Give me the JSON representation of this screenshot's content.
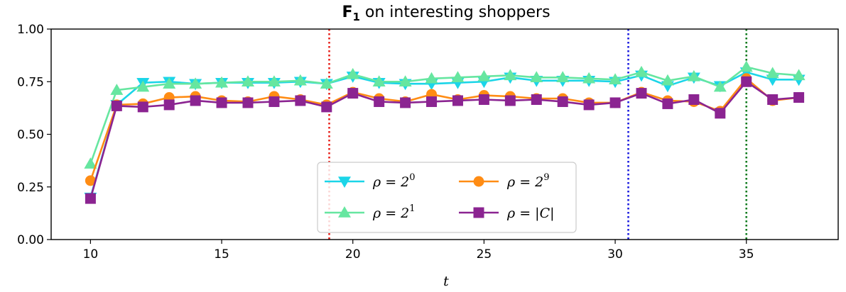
{
  "chart_data": {
    "type": "line",
    "title_bold": "F",
    "title_sub": "1",
    "title_rest": " on interesting shoppers",
    "xlabel": "t",
    "ylabel": "",
    "xlim": [
      8.5,
      38.5
    ],
    "ylim": [
      0.0,
      1.0
    ],
    "xticks": [
      10,
      15,
      20,
      25,
      30,
      35
    ],
    "yticks": [
      0.0,
      0.25,
      0.5,
      0.75,
      1.0
    ],
    "ytick_labels": [
      "0.00",
      "0.25",
      "0.50",
      "0.75",
      "1.00"
    ],
    "grid": false,
    "legend_position": "lower-center",
    "vlines": [
      {
        "x": 19.1,
        "color": "#e8221c"
      },
      {
        "x": 30.5,
        "color": "#1a1ae0"
      },
      {
        "x": 35.0,
        "color": "#0c7a1c"
      }
    ],
    "x": [
      10,
      11,
      12,
      13,
      14,
      15,
      16,
      17,
      18,
      19,
      20,
      21,
      22,
      23,
      24,
      25,
      26,
      27,
      28,
      29,
      30,
      31,
      32,
      33,
      34,
      35,
      36,
      37
    ],
    "series": [
      {
        "base": "ρ = 2",
        "sup": "0",
        "color": "#1bd5e8",
        "marker": "triangle-down",
        "values": [
          0.2,
          0.64,
          0.745,
          0.75,
          0.74,
          0.745,
          0.745,
          0.745,
          0.75,
          0.74,
          0.775,
          0.745,
          0.74,
          0.74,
          0.745,
          0.75,
          0.77,
          0.755,
          0.755,
          0.755,
          0.75,
          0.78,
          0.73,
          0.77,
          0.73,
          0.795,
          0.76,
          0.76
        ]
      },
      {
        "base": "ρ = 2",
        "sup": "1",
        "color": "#66e6a0",
        "marker": "triangle-up",
        "values": [
          0.36,
          0.71,
          0.725,
          0.74,
          0.74,
          0.745,
          0.75,
          0.75,
          0.755,
          0.74,
          0.785,
          0.75,
          0.75,
          0.765,
          0.77,
          0.775,
          0.78,
          0.77,
          0.77,
          0.765,
          0.76,
          0.795,
          0.755,
          0.775,
          0.725,
          0.82,
          0.79,
          0.78
        ]
      },
      {
        "base": "ρ = 2",
        "sup": "9",
        "color": "#ff8c14",
        "marker": "circle",
        "values": [
          0.28,
          0.64,
          0.645,
          0.675,
          0.68,
          0.66,
          0.655,
          0.68,
          0.665,
          0.64,
          0.7,
          0.67,
          0.655,
          0.69,
          0.665,
          0.685,
          0.68,
          0.67,
          0.67,
          0.65,
          0.65,
          0.7,
          0.66,
          0.655,
          0.61,
          0.765,
          0.66,
          0.675
        ]
      },
      {
        "base": "ρ = |C|",
        "sup": "",
        "color": "#8b2491",
        "marker": "square",
        "values": [
          0.195,
          0.635,
          0.63,
          0.64,
          0.66,
          0.65,
          0.65,
          0.655,
          0.66,
          0.63,
          0.695,
          0.655,
          0.65,
          0.655,
          0.66,
          0.665,
          0.66,
          0.665,
          0.655,
          0.64,
          0.65,
          0.695,
          0.645,
          0.665,
          0.6,
          0.75,
          0.665,
          0.675
        ]
      }
    ]
  }
}
